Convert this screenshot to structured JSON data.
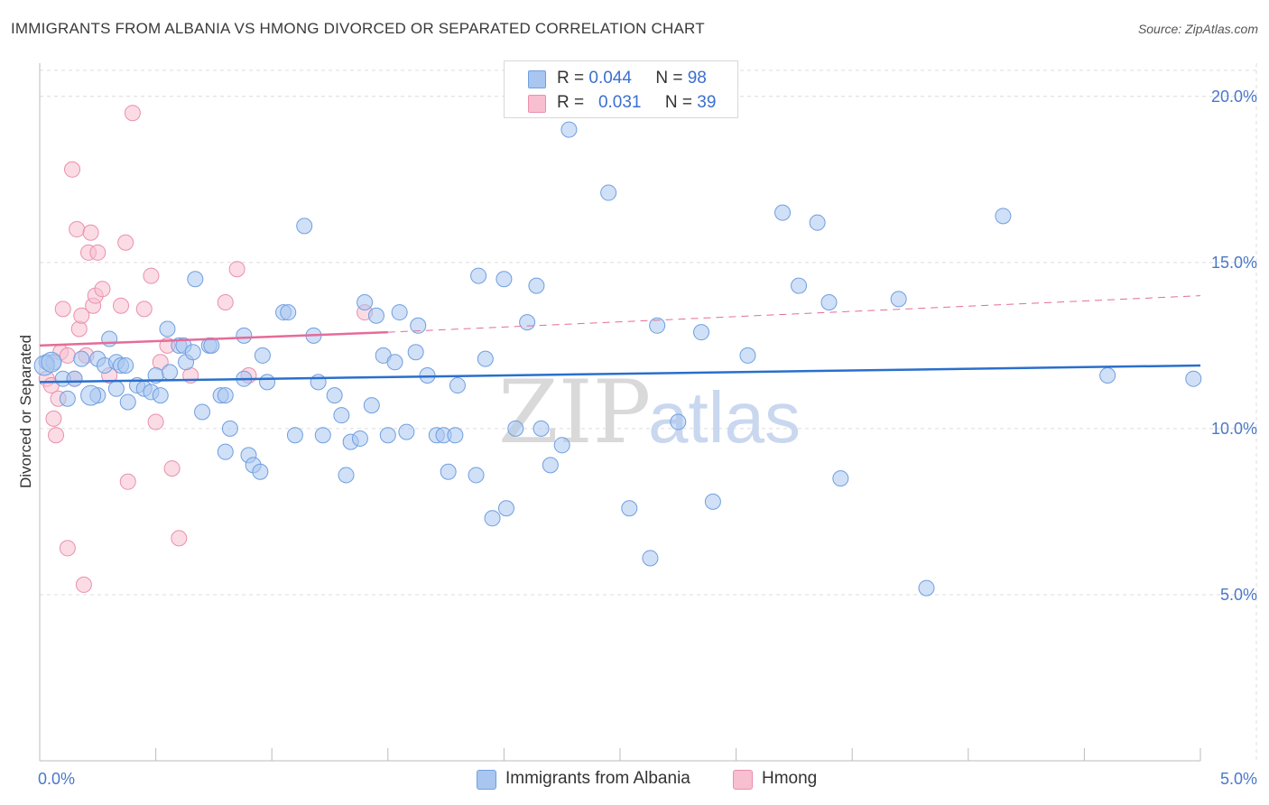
{
  "title": "IMMIGRANTS FROM ALBANIA VS HMONG DIVORCED OR SEPARATED CORRELATION CHART",
  "source": "Source: ZipAtlas.com",
  "watermark": {
    "zip": "ZIP",
    "atlas": "atlas"
  },
  "legend_top": {
    "albania": {
      "r_label": "R =",
      "r_value": "0.044",
      "n_label": "N =",
      "n_value": "98"
    },
    "hmong": {
      "r_label": "R =",
      "r_value": "0.031",
      "n_label": "N =",
      "n_value": "39"
    }
  },
  "legend_bottom": {
    "albania": "Immigrants from Albania",
    "hmong": "Hmong"
  },
  "colors": {
    "albania_fill": "#a9c6f0",
    "albania_stroke": "#6f9fe0",
    "albania_line": "#2a6fcc",
    "hmong_fill": "#f7bfd0",
    "hmong_stroke": "#ea8fae",
    "hmong_line": "#e56c99",
    "tick_text": "#4a78c8",
    "grid": "#dcdcdc"
  },
  "chart_data": {
    "type": "scatter",
    "title": "IMMIGRANTS FROM ALBANIA VS HMONG DIVORCED OR SEPARATED CORRELATION CHART",
    "xlabel": "",
    "ylabel": "Divorced or Separated",
    "xlim": [
      0,
      5
    ],
    "ylim": [
      0,
      21
    ],
    "x_ticks": [
      "0.0%",
      "5.0%"
    ],
    "y_ticks": [
      "5.0%",
      "10.0%",
      "15.0%",
      "20.0%"
    ],
    "grid": true,
    "legend_position": "top-center",
    "series": [
      {
        "name": "Immigrants from Albania",
        "r": 0.044,
        "n": 98,
        "trend": {
          "x": [
            0,
            5
          ],
          "y": [
            11.4,
            11.9
          ]
        },
        "points": [
          [
            0.03,
            12.0
          ],
          [
            0.06,
            12.0
          ],
          [
            0.1,
            11.5
          ],
          [
            0.12,
            10.9
          ],
          [
            0.15,
            11.5
          ],
          [
            0.18,
            12.1
          ],
          [
            0.25,
            12.1
          ],
          [
            0.25,
            11.0
          ],
          [
            0.28,
            11.9
          ],
          [
            0.3,
            12.7
          ],
          [
            0.33,
            12.0
          ],
          [
            0.35,
            11.9
          ],
          [
            0.33,
            11.2
          ],
          [
            0.37,
            11.9
          ],
          [
            0.42,
            11.3
          ],
          [
            0.38,
            10.8
          ],
          [
            0.45,
            11.2
          ],
          [
            0.48,
            11.1
          ],
          [
            0.5,
            11.6
          ],
          [
            0.52,
            11.0
          ],
          [
            0.55,
            13.0
          ],
          [
            0.56,
            11.7
          ],
          [
            0.6,
            12.5
          ],
          [
            0.62,
            12.5
          ],
          [
            0.63,
            12.0
          ],
          [
            0.66,
            12.3
          ],
          [
            0.67,
            14.5
          ],
          [
            0.7,
            10.5
          ],
          [
            0.73,
            12.5
          ],
          [
            0.74,
            12.5
          ],
          [
            0.78,
            11.0
          ],
          [
            0.8,
            11.0
          ],
          [
            0.82,
            10.0
          ],
          [
            0.8,
            9.3
          ],
          [
            0.88,
            11.5
          ],
          [
            0.88,
            12.8
          ],
          [
            0.9,
            9.2
          ],
          [
            0.92,
            8.9
          ],
          [
            0.95,
            8.7
          ],
          [
            0.96,
            12.2
          ],
          [
            0.98,
            11.4
          ],
          [
            1.05,
            13.5
          ],
          [
            1.07,
            13.5
          ],
          [
            1.1,
            9.8
          ],
          [
            1.14,
            16.1
          ],
          [
            1.18,
            12.8
          ],
          [
            1.2,
            11.4
          ],
          [
            1.22,
            9.8
          ],
          [
            1.27,
            11.0
          ],
          [
            1.3,
            10.4
          ],
          [
            1.32,
            8.6
          ],
          [
            1.34,
            9.6
          ],
          [
            1.38,
            9.7
          ],
          [
            1.4,
            13.8
          ],
          [
            1.43,
            10.7
          ],
          [
            1.45,
            13.4
          ],
          [
            1.48,
            12.2
          ],
          [
            1.5,
            9.8
          ],
          [
            1.53,
            12.0
          ],
          [
            1.55,
            13.5
          ],
          [
            1.58,
            9.9
          ],
          [
            1.62,
            12.3
          ],
          [
            1.63,
            13.1
          ],
          [
            1.67,
            11.6
          ],
          [
            1.71,
            9.8
          ],
          [
            1.74,
            9.8
          ],
          [
            1.76,
            8.7
          ],
          [
            1.79,
            9.8
          ],
          [
            1.8,
            11.3
          ],
          [
            1.88,
            8.6
          ],
          [
            1.89,
            14.6
          ],
          [
            1.92,
            12.1
          ],
          [
            1.95,
            7.3
          ],
          [
            2.0,
            14.5
          ],
          [
            2.01,
            7.6
          ],
          [
            2.05,
            10.0
          ],
          [
            2.1,
            13.2
          ],
          [
            2.14,
            14.3
          ],
          [
            2.16,
            10.0
          ],
          [
            2.2,
            8.9
          ],
          [
            2.25,
            9.5
          ],
          [
            2.28,
            19.0
          ],
          [
            2.45,
            17.1
          ],
          [
            2.54,
            7.6
          ],
          [
            2.63,
            6.1
          ],
          [
            2.66,
            13.1
          ],
          [
            2.75,
            10.2
          ],
          [
            2.85,
            12.9
          ],
          [
            2.9,
            7.8
          ],
          [
            3.05,
            12.2
          ],
          [
            3.2,
            16.5
          ],
          [
            3.27,
            14.3
          ],
          [
            3.35,
            16.2
          ],
          [
            3.4,
            13.8
          ],
          [
            3.45,
            8.5
          ],
          [
            3.7,
            13.9
          ],
          [
            3.82,
            5.2
          ],
          [
            4.15,
            16.4
          ],
          [
            4.6,
            11.6
          ],
          [
            4.97,
            11.5
          ]
        ],
        "large_points": [
          [
            0.02,
            11.9
          ],
          [
            0.05,
            12.0
          ],
          [
            0.22,
            11.0
          ]
        ]
      },
      {
        "name": "Hmong",
        "r": 0.031,
        "n": 39,
        "trend": {
          "x": [
            0,
            1.5
          ],
          "y": [
            12.5,
            12.9
          ],
          "dashed_extension": {
            "x": [
              1.5,
              5
            ],
            "y": [
              12.9,
              14.0
            ]
          }
        },
        "points": [
          [
            0.03,
            11.5
          ],
          [
            0.05,
            11.3
          ],
          [
            0.06,
            10.3
          ],
          [
            0.07,
            9.8
          ],
          [
            0.08,
            10.9
          ],
          [
            0.09,
            12.3
          ],
          [
            0.1,
            13.6
          ],
          [
            0.12,
            12.2
          ],
          [
            0.12,
            6.4
          ],
          [
            0.14,
            17.8
          ],
          [
            0.15,
            11.5
          ],
          [
            0.16,
            16.0
          ],
          [
            0.17,
            13.0
          ],
          [
            0.18,
            13.4
          ],
          [
            0.19,
            5.3
          ],
          [
            0.2,
            12.2
          ],
          [
            0.21,
            15.3
          ],
          [
            0.22,
            15.9
          ],
          [
            0.23,
            13.7
          ],
          [
            0.24,
            14.0
          ],
          [
            0.25,
            15.3
          ],
          [
            0.27,
            14.2
          ],
          [
            0.3,
            11.6
          ],
          [
            0.35,
            13.7
          ],
          [
            0.37,
            15.6
          ],
          [
            0.38,
            8.4
          ],
          [
            0.4,
            19.5
          ],
          [
            0.45,
            13.6
          ],
          [
            0.48,
            14.6
          ],
          [
            0.5,
            10.2
          ],
          [
            0.52,
            12.0
          ],
          [
            0.55,
            12.5
          ],
          [
            0.57,
            8.8
          ],
          [
            0.6,
            6.7
          ],
          [
            0.65,
            11.6
          ],
          [
            0.8,
            13.8
          ],
          [
            0.85,
            14.8
          ],
          [
            0.9,
            11.6
          ],
          [
            1.4,
            13.5
          ]
        ]
      }
    ]
  }
}
